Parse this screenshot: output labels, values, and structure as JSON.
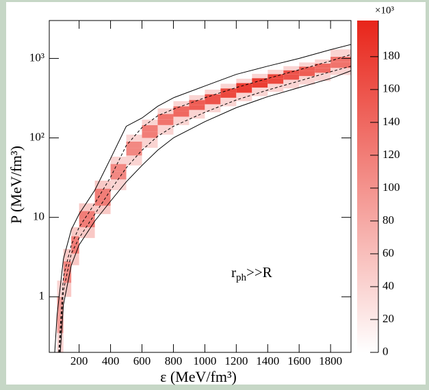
{
  "chart_data": {
    "type": "heatmap",
    "xlabel": "ε (MeV/fm³)",
    "ylabel": "P (MeV/fm³)",
    "annotation": {
      "main": "r",
      "sub": "ph",
      "rest": ">>R"
    },
    "xlim": [
      10,
      1930
    ],
    "xticks": [
      200,
      400,
      600,
      800,
      1000,
      1200,
      1400,
      1600,
      1800
    ],
    "ylim": [
      0.2,
      3000
    ],
    "ylog": true,
    "yticks": [
      {
        "value": 1,
        "label": "1"
      },
      {
        "value": 10,
        "label": "10"
      },
      {
        "value": 100,
        "label": "10²"
      },
      {
        "value": 1000,
        "label": "10³"
      }
    ],
    "zlim": [
      0,
      202
    ],
    "zticks": [
      0,
      20,
      40,
      60,
      80,
      100,
      120,
      140,
      160,
      180
    ],
    "zmultiplier": "×10³",
    "color_low": "#ffffff",
    "color_high": "#e8251a",
    "heatmap": {
      "xbins": [
        60,
        100,
        150,
        200,
        300,
        400,
        500,
        600,
        700,
        800,
        900,
        1000,
        1100,
        1200,
        1300,
        1400,
        1500,
        1600,
        1700,
        1800,
        1930
      ],
      "columns": [
        {
          "ybins": [
            0.2,
            0.35,
            0.6,
            1.0,
            1.6
          ],
          "z": [
            40,
            90,
            90,
            40
          ]
        },
        {
          "ybins": [
            1.0,
            1.5,
            2.0,
            2.8,
            4.0
          ],
          "z": [
            50,
            110,
            110,
            50
          ]
        },
        {
          "ybins": [
            2.5,
            3.5,
            4.5,
            5.8,
            7.5
          ],
          "z": [
            50,
            120,
            120,
            50
          ]
        },
        {
          "ybins": [
            5.5,
            7.5,
            9.5,
            12,
            15
          ],
          "z": [
            50,
            120,
            120,
            50
          ]
        },
        {
          "ybins": [
            11,
            14,
            18,
            23,
            29
          ],
          "z": [
            50,
            120,
            120,
            50
          ]
        },
        {
          "ybins": [
            22,
            30,
            38,
            47,
            58
          ],
          "z": [
            40,
            110,
            110,
            40
          ]
        },
        {
          "ybins": [
            45,
            60,
            75,
            90,
            110
          ],
          "z": [
            40,
            110,
            110,
            40
          ]
        },
        {
          "ybins": [
            75,
            100,
            120,
            145,
            170
          ],
          "z": [
            40,
            120,
            120,
            40
          ]
        },
        {
          "ybins": [
            110,
            145,
            170,
            200,
            235
          ],
          "z": [
            40,
            130,
            130,
            40
          ]
        },
        {
          "ybins": [
            145,
            185,
            215,
            250,
            290
          ],
          "z": [
            40,
            140,
            140,
            40
          ]
        },
        {
          "ybins": [
            175,
            225,
            260,
            300,
            345
          ],
          "z": [
            40,
            150,
            150,
            40
          ]
        },
        {
          "ybins": [
            210,
            265,
            310,
            355,
            405
          ],
          "z": [
            40,
            160,
            160,
            40
          ]
        },
        {
          "ybins": [
            250,
            320,
            370,
            420,
            480
          ],
          "z": [
            40,
            170,
            170,
            40
          ]
        },
        {
          "ybins": [
            290,
            370,
            430,
            490,
            555
          ],
          "z": [
            40,
            180,
            180,
            40
          ]
        },
        {
          "ybins": [
            335,
            430,
            500,
            565,
            640
          ],
          "z": [
            40,
            180,
            180,
            40
          ]
        },
        {
          "ybins": [
            380,
            480,
            560,
            635,
            720
          ],
          "z": [
            40,
            170,
            170,
            40
          ]
        },
        {
          "ybins": [
            420,
            540,
            630,
            710,
            800
          ],
          "z": [
            40,
            160,
            160,
            40
          ]
        },
        {
          "ybins": [
            470,
            600,
            700,
            790,
            890
          ],
          "z": [
            40,
            150,
            150,
            40
          ]
        },
        {
          "ybins": [
            520,
            660,
            760,
            860,
            970
          ],
          "z": [
            40,
            140,
            140,
            40
          ]
        },
        {
          "ybins": [
            620,
            760,
            900,
            1050,
            1300
          ],
          "z": [
            40,
            130,
            130,
            40
          ]
        }
      ]
    },
    "lines": [
      {
        "style": "solid",
        "x": [
          45,
          60,
          100,
          150,
          200,
          300,
          400,
          500,
          600,
          700,
          800,
          1000,
          1200,
          1400,
          1600,
          1800,
          1930
        ],
        "values": [
          0.2,
          0.6,
          3,
          7,
          11,
          22,
          55,
          140,
          178,
          250,
          320,
          450,
          630,
          800,
          1000,
          1290,
          1500
        ]
      },
      {
        "style": "solid",
        "x": [
          80,
          100,
          150,
          200,
          300,
          400,
          500,
          600,
          700,
          800,
          1000,
          1200,
          1400,
          1600,
          1800,
          1930
        ],
        "values": [
          0.2,
          0.8,
          2.5,
          4.5,
          9,
          16,
          28,
          45,
          70,
          100,
          160,
          240,
          330,
          430,
          560,
          700
        ]
      },
      {
        "style": "dashed",
        "x": [
          70,
          100,
          150,
          200,
          300,
          400,
          500,
          600,
          700,
          800,
          1000,
          1200,
          1400,
          1600,
          1800,
          1930
        ],
        "values": [
          0.2,
          1.8,
          4.5,
          7.5,
          15,
          32,
          80,
          135,
          190,
          230,
          320,
          430,
          560,
          720,
          930,
          1120
        ]
      },
      {
        "style": "dashed",
        "x": [
          75,
          100,
          150,
          200,
          300,
          400,
          500,
          600,
          700,
          800,
          1000,
          1200,
          1400,
          1600,
          1800,
          1930
        ],
        "values": [
          0.2,
          1.2,
          3.5,
          5.5,
          11,
          22,
          42,
          70,
          105,
          140,
          210,
          300,
          400,
          520,
          680,
          800
        ]
      }
    ]
  }
}
